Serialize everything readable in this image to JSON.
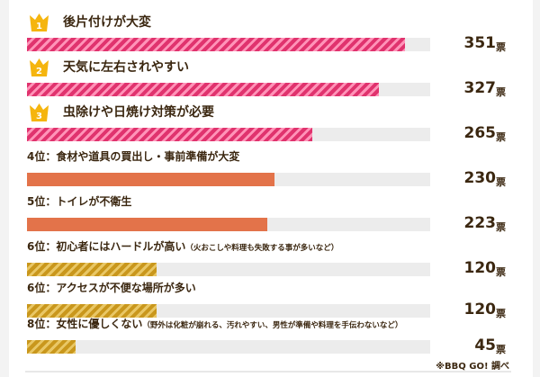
{
  "colors": {
    "pink": "#e0336e",
    "orange": "#e3734a",
    "gold": "#c9971c",
    "crown": "#f5b50e",
    "text": "#3b2710"
  },
  "chart_data": {
    "type": "bar",
    "orientation": "horizontal",
    "unit": "票",
    "max_value": 351,
    "items": [
      {
        "rank_badge": "1",
        "label": "後片付けが大変",
        "note": "",
        "value": 351,
        "value_text": "351",
        "style": "pink-striped"
      },
      {
        "rank_badge": "2",
        "label": "天気に左右されやすい",
        "note": "",
        "value": 327,
        "value_text": "327",
        "style": "pink-striped"
      },
      {
        "rank_badge": "3",
        "label": "虫除けや日焼け対策が必要",
        "note": "",
        "value": 265,
        "value_text": "265",
        "style": "pink-striped"
      },
      {
        "rank_text": "4位：",
        "label": "食材や道具の買出し・事前準備が大変",
        "note": "",
        "value": 230,
        "value_text": "230",
        "style": "orange"
      },
      {
        "rank_text": "5位：",
        "label": "トイレが不衛生",
        "note": "",
        "value": 223,
        "value_text": "223",
        "style": "orange"
      },
      {
        "rank_text": "6位：",
        "label": "初心者にはハードルが高い",
        "note": "（火おこしや料理も失敗する事が多いなど）",
        "value": 120,
        "value_text": "120",
        "style": "gold"
      },
      {
        "rank_text": "6位：",
        "label": "アクセスが不便な場所が多い",
        "note": "",
        "value": 120,
        "value_text": "120",
        "style": "gold"
      },
      {
        "rank_text": "8位：",
        "label": "女性に優しくない",
        "note": "（野外は化粧が崩れる、汚れやすい、男性が準備や料理を手伝わないなど）",
        "value": 45,
        "value_text": "45",
        "style": "gold-striped"
      }
    ],
    "source": "※BBQ GO! 調べ"
  }
}
